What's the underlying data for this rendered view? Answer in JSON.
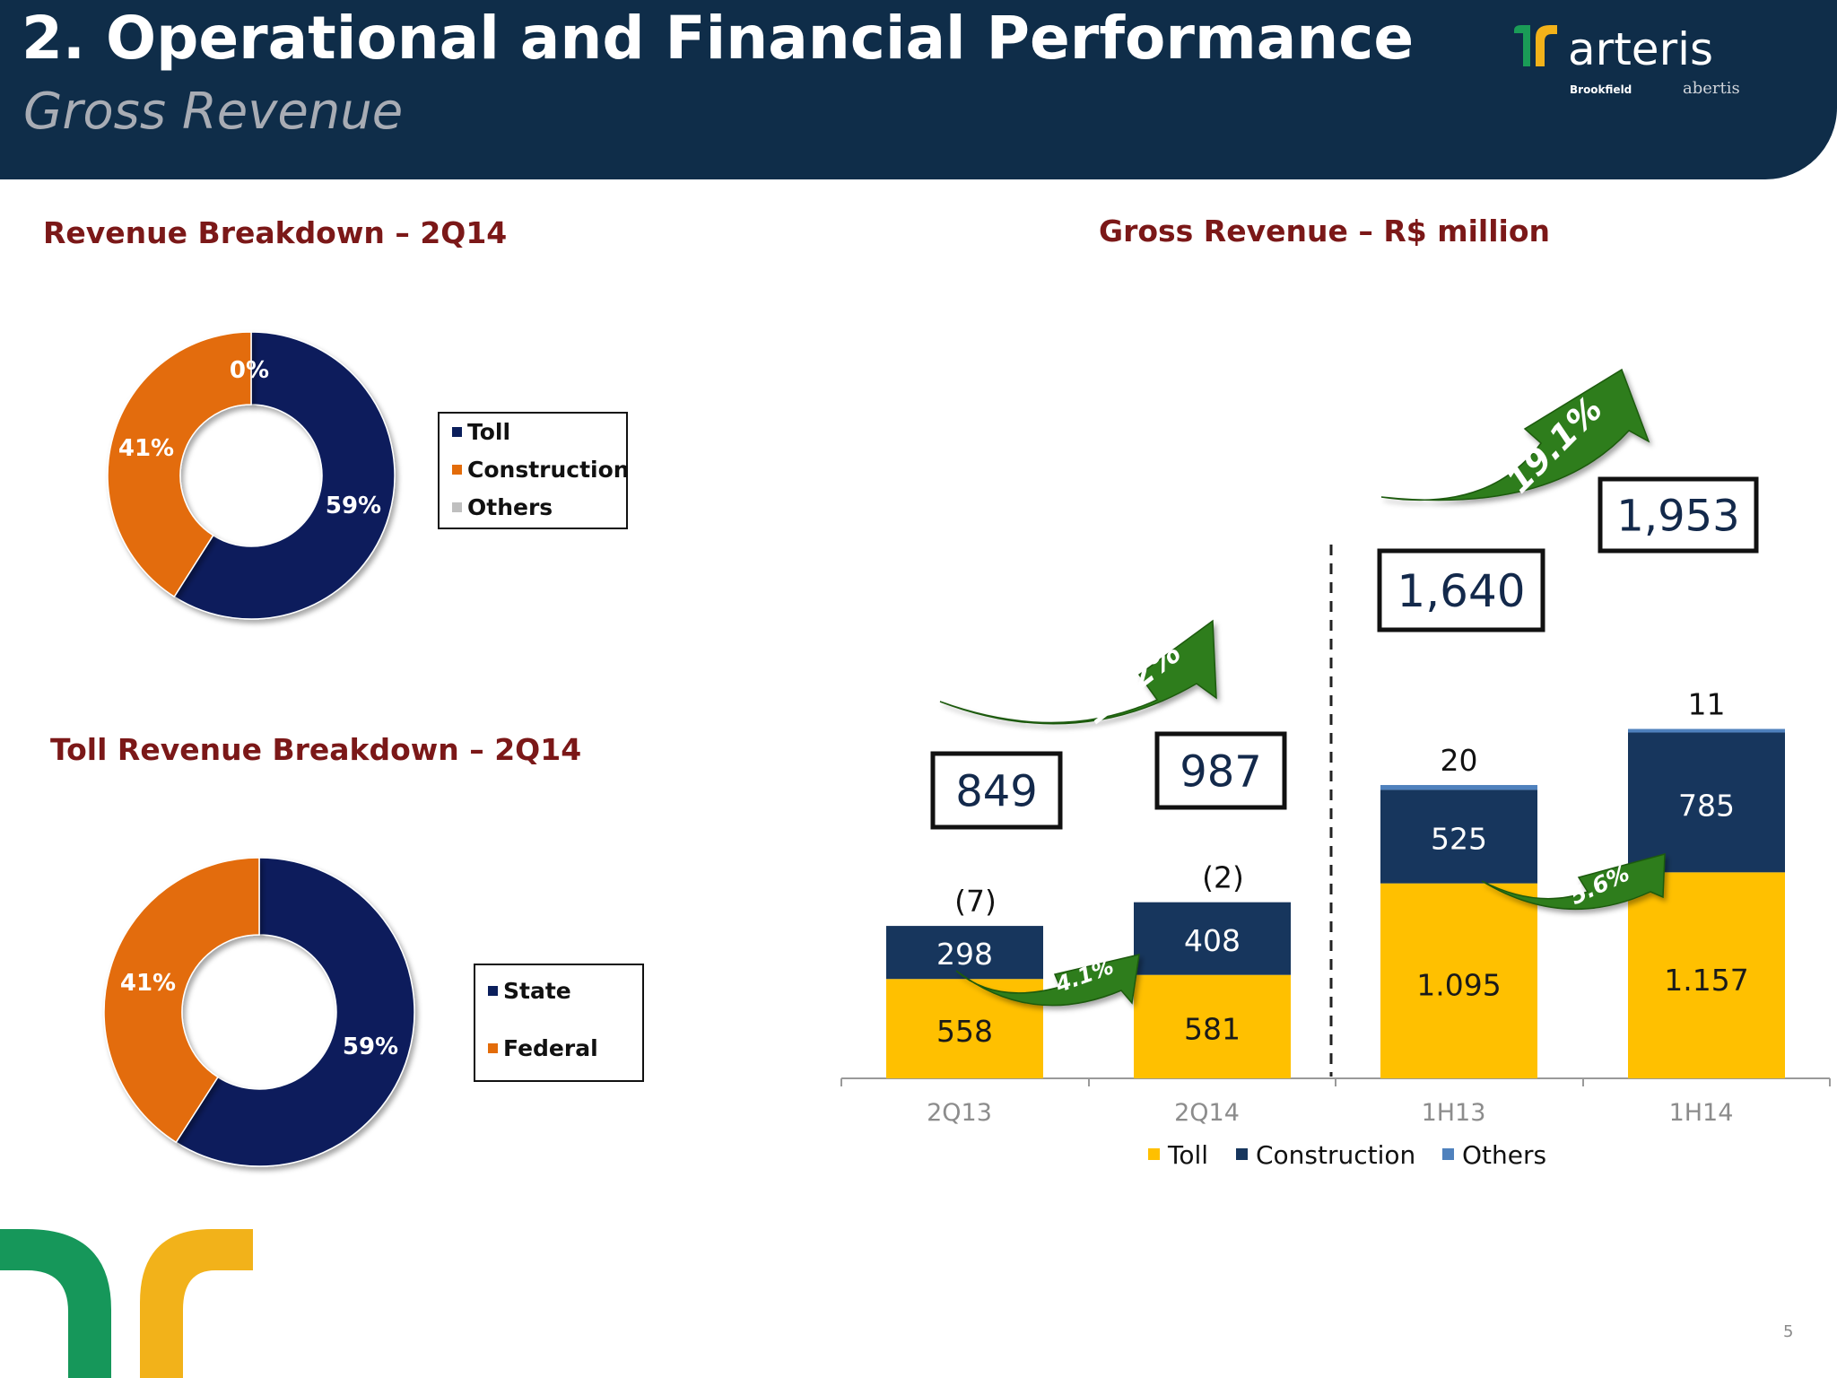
{
  "header": {
    "title": "2. Operational and Financial Performance",
    "subtitle": "Gross Revenue",
    "logo_text": "arteris",
    "logo_partners": [
      "Brookfield",
      "abertis"
    ]
  },
  "page_number": "5",
  "colors": {
    "header_bg": "#0f2d49",
    "toll_navy": "#0b1f5c",
    "construction_orange": "#e36c0a",
    "others_gray": "#bfbfbf",
    "bar_toll_yellow": "#ffc000",
    "bar_construction_navy": "#17365d",
    "bar_others_blue": "#4f81bd",
    "growth_arrow_green": "#2e7d1a",
    "section_title_red": "#7b1818"
  },
  "chart_data": [
    {
      "type": "pie",
      "title": "Revenue Breakdown – 2Q14",
      "labels": [
        "Toll",
        "Construction",
        "Others"
      ],
      "values": [
        59,
        41,
        0
      ],
      "value_labels": [
        "59%",
        "41%",
        "0%"
      ],
      "colors": [
        "#0b1f5c",
        "#e36c0a",
        "#bfbfbf"
      ],
      "legend_placement": "right"
    },
    {
      "type": "pie",
      "title": "Toll Revenue Breakdown – 2Q14",
      "labels": [
        "State",
        "Federal"
      ],
      "values": [
        59,
        41
      ],
      "value_labels": [
        "59%",
        "41%"
      ],
      "colors": [
        "#0b1f5c",
        "#e36c0a"
      ],
      "legend_placement": "right"
    },
    {
      "type": "bar",
      "stacked": true,
      "title": "Gross Revenue – R$ million",
      "categories": [
        "2Q13",
        "2Q14",
        "1H13",
        "1H14"
      ],
      "series": [
        {
          "name": "Toll",
          "values": [
            558,
            581,
            1095,
            1157
          ],
          "labels": [
            "558",
            "581",
            "1.095",
            "1.157"
          ],
          "color": "#ffc000"
        },
        {
          "name": "Construction",
          "values": [
            298,
            408,
            525,
            785
          ],
          "labels": [
            "298",
            "408",
            "525",
            "785"
          ],
          "color": "#17365d"
        },
        {
          "name": "Others",
          "values": [
            -7,
            -2,
            20,
            11
          ],
          "labels": [
            "(7)",
            "(2)",
            "20",
            "11"
          ],
          "color": "#4f81bd"
        }
      ],
      "totals": [
        "849",
        "987",
        "1,640",
        "1,953"
      ],
      "growth_annotations": [
        {
          "label": "16.2%",
          "from": "2Q13",
          "to": "2Q14",
          "measure": "total"
        },
        {
          "label": "4.1%",
          "from": "2Q13",
          "to": "2Q14",
          "measure": "Toll"
        },
        {
          "label": "19.1%",
          "from": "1H13",
          "to": "1H14",
          "measure": "total"
        },
        {
          "label": "5.6%",
          "from": "1H13",
          "to": "1H14",
          "measure": "Toll"
        }
      ],
      "legend_placement": "bottom",
      "grid": false
    }
  ]
}
